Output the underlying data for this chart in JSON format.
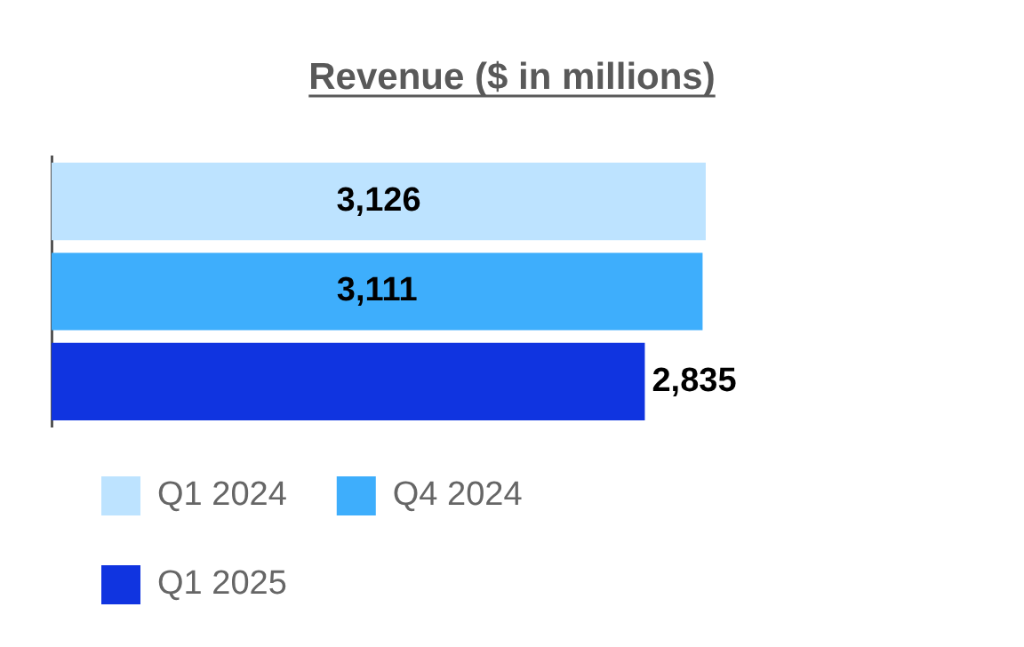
{
  "chart_data": {
    "type": "bar",
    "orientation": "horizontal",
    "title": "Revenue ($ in millions)",
    "categories": [
      null
    ],
    "series": [
      {
        "name": "Q1 2024",
        "color": "#bde3ff",
        "values": [
          3126
        ],
        "value_labels": [
          "3,126"
        ]
      },
      {
        "name": "Q4 2024",
        "color": "#3eaefc",
        "values": [
          3111
        ],
        "value_labels": [
          "3,111"
        ]
      },
      {
        "name": "Q1 2025",
        "color": "#1034e0",
        "values": [
          2835
        ],
        "value_labels": [
          "2,835"
        ]
      }
    ],
    "tick_labels": false,
    "legend": "bottom"
  }
}
